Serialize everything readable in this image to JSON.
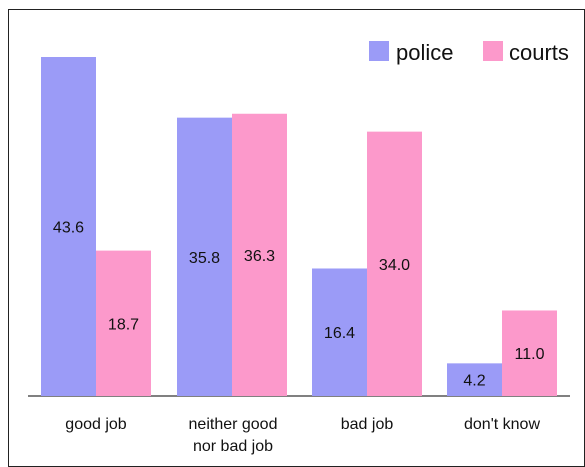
{
  "chart_data": {
    "type": "bar",
    "title": "",
    "xlabel": "",
    "ylabel": "",
    "categories": [
      [
        "good job"
      ],
      [
        "neither good",
        "nor bad job"
      ],
      [
        "bad job"
      ],
      [
        "don't know"
      ]
    ],
    "series": [
      {
        "name": "police",
        "color": "#9b9bf7",
        "values": [
          43.6,
          35.8,
          16.4,
          4.2
        ]
      },
      {
        "name": "courts",
        "color": "#fc99cb",
        "values": [
          18.7,
          36.3,
          34.0,
          11.0
        ]
      }
    ],
    "value_labels": [
      [
        "43.6",
        "35.8",
        "16.4",
        "4.2"
      ],
      [
        "18.7",
        "36.3",
        "34.0",
        "11.0"
      ]
    ],
    "ylim": [
      0,
      45
    ],
    "grid": false,
    "legend": {
      "placement": "top-right"
    }
  }
}
